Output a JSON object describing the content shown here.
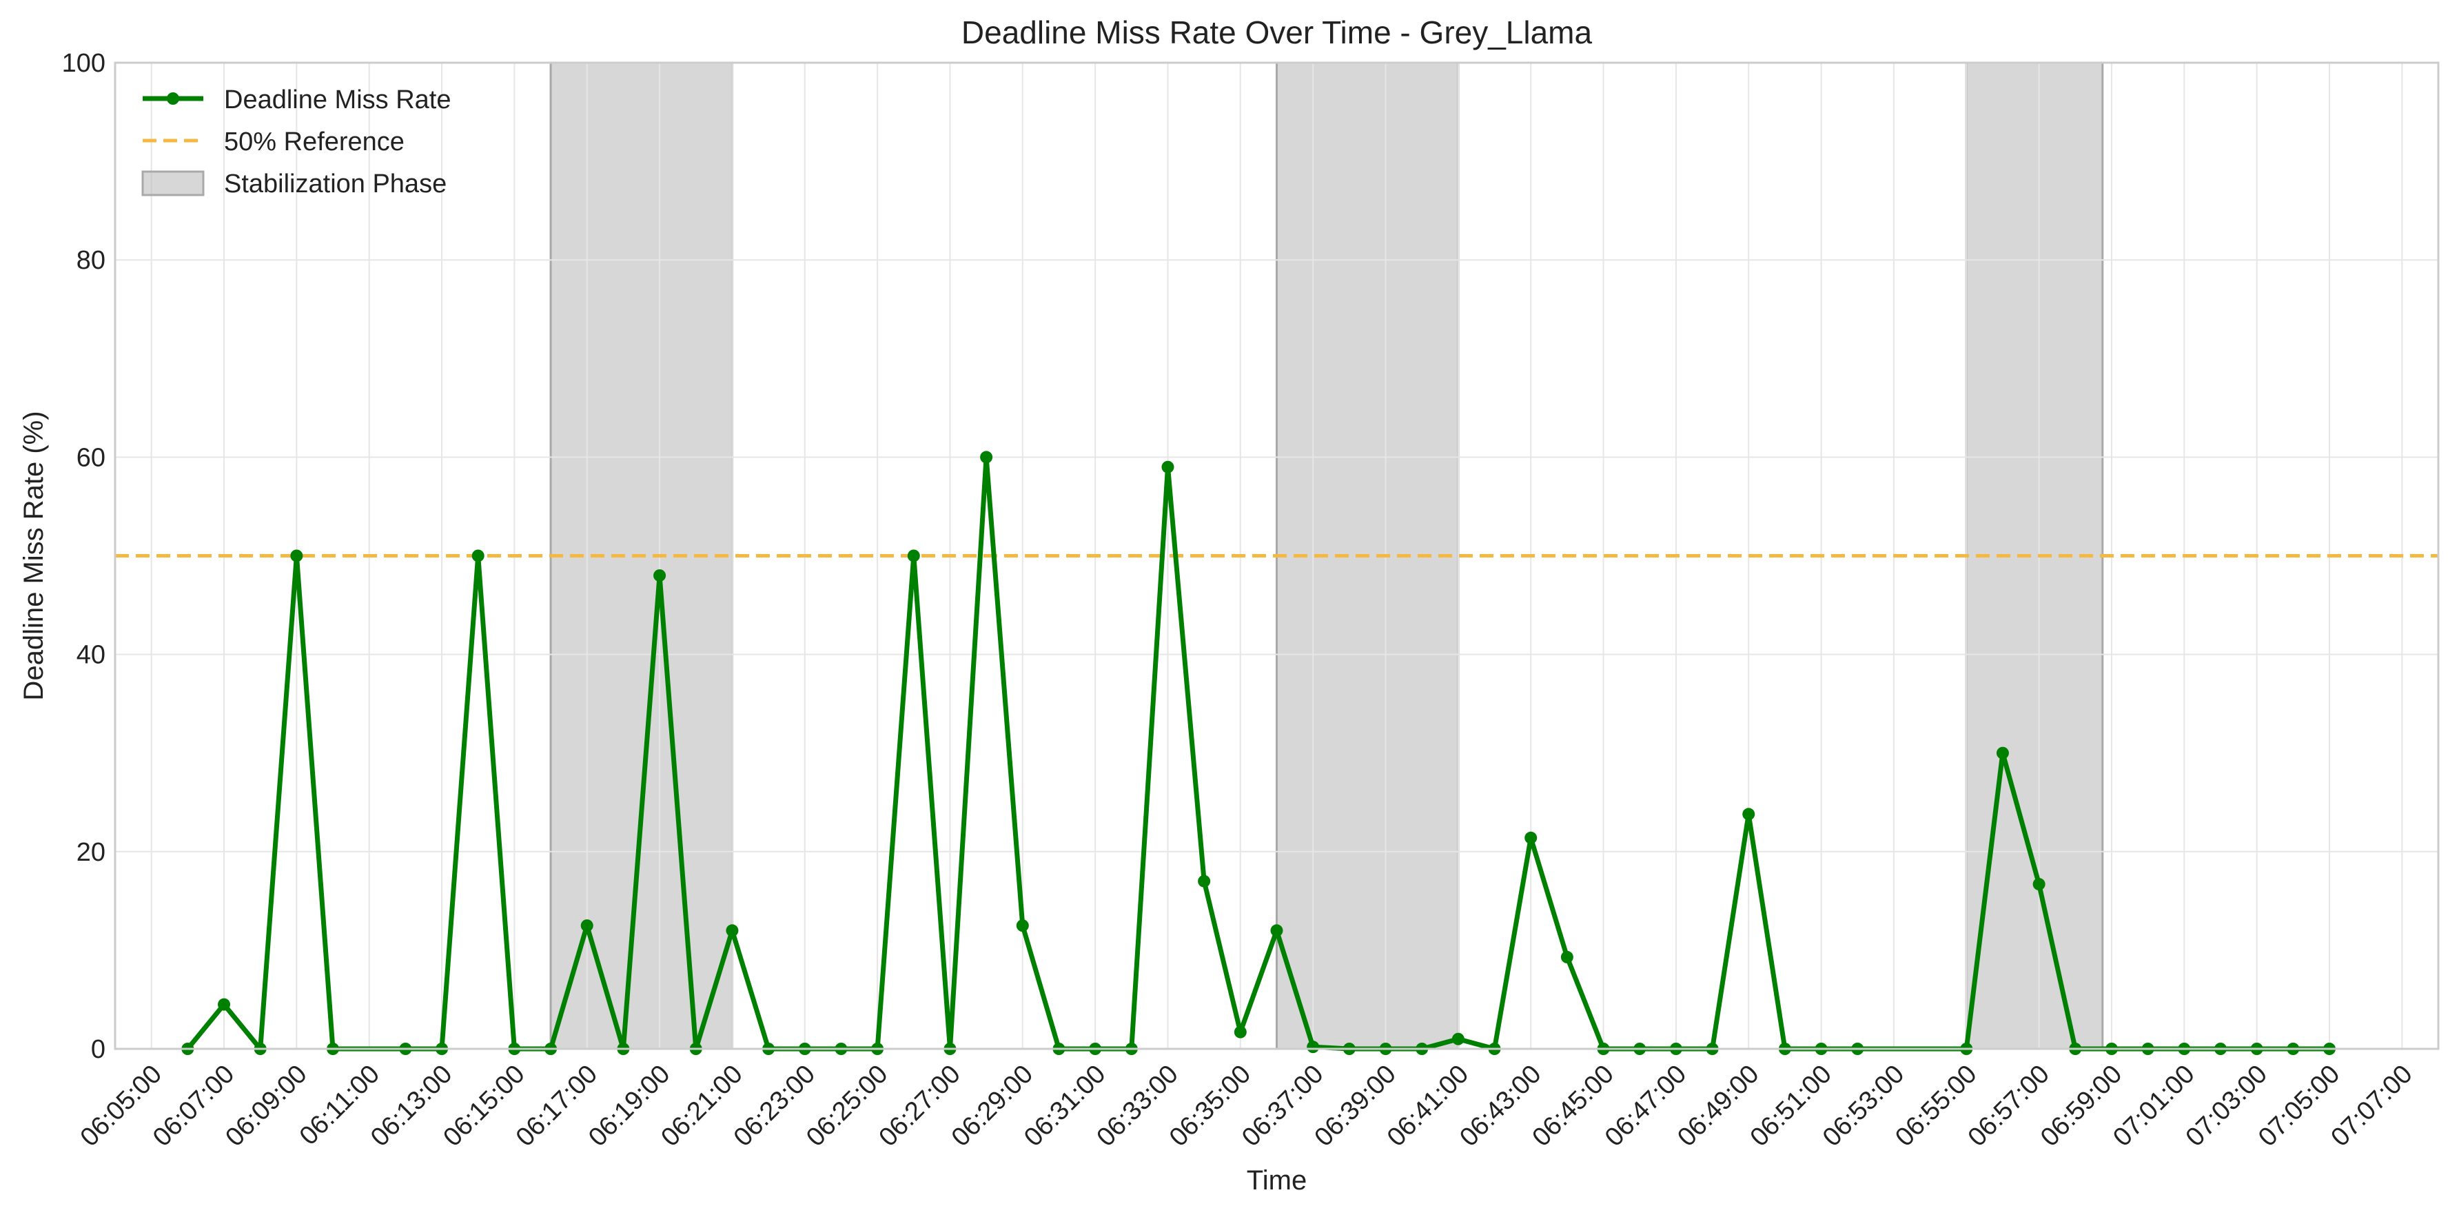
{
  "chart_data": {
    "type": "line",
    "title": "Deadline Miss Rate Over Time - Grey_Llama",
    "xlabel": "Time",
    "ylabel": "Deadline Miss Rate (%)",
    "ylim": [
      0,
      100
    ],
    "yticks": [
      0,
      20,
      40,
      60,
      80,
      100
    ],
    "xlim_minutes": [
      364,
      428
    ],
    "xticks": [
      "06:05:00",
      "06:07:00",
      "06:09:00",
      "06:11:00",
      "06:13:00",
      "06:15:00",
      "06:17:00",
      "06:19:00",
      "06:21:00",
      "06:23:00",
      "06:25:00",
      "06:27:00",
      "06:29:00",
      "06:31:00",
      "06:33:00",
      "06:35:00",
      "06:37:00",
      "06:39:00",
      "06:41:00",
      "06:43:00",
      "06:45:00",
      "06:47:00",
      "06:49:00",
      "06:51:00",
      "06:53:00",
      "06:55:00",
      "06:57:00",
      "06:59:00",
      "07:01:00",
      "07:03:00",
      "07:05:00",
      "07:07:00"
    ],
    "grid": true,
    "legend_position": "top-left",
    "series": [
      {
        "name": "Deadline Miss Rate",
        "color": "#008000",
        "x": [
          "06:06:00",
          "06:07:00",
          "06:08:00",
          "06:09:00",
          "06:10:00",
          "06:12:00",
          "06:13:00",
          "06:14:00",
          "06:15:00",
          "06:16:00",
          "06:17:00",
          "06:18:00",
          "06:19:00",
          "06:20:00",
          "06:21:00",
          "06:22:00",
          "06:23:00",
          "06:24:00",
          "06:25:00",
          "06:26:00",
          "06:27:00",
          "06:28:00",
          "06:29:00",
          "06:30:00",
          "06:31:00",
          "06:32:00",
          "06:33:00",
          "06:34:00",
          "06:35:00",
          "06:36:00",
          "06:37:00",
          "06:38:00",
          "06:39:00",
          "06:40:00",
          "06:41:00",
          "06:42:00",
          "06:43:00",
          "06:44:00",
          "06:45:00",
          "06:46:00",
          "06:47:00",
          "06:48:00",
          "06:49:00",
          "06:50:00",
          "06:51:00",
          "06:52:00",
          "06:55:00",
          "06:56:00",
          "06:57:00",
          "06:58:00",
          "06:59:00",
          "07:00:00",
          "07:01:00",
          "07:02:00",
          "07:03:00",
          "07:04:00",
          "07:05:00"
        ],
        "values": [
          0,
          4.5,
          0,
          50,
          0,
          0,
          0,
          50,
          0,
          0,
          12.5,
          0,
          48,
          0,
          12,
          0,
          0,
          0,
          0,
          50,
          0,
          60,
          12.5,
          0,
          0,
          0,
          59,
          17,
          1.7,
          12,
          0.2,
          0,
          0,
          0,
          1,
          0,
          21.4,
          9.3,
          0,
          0,
          0,
          0,
          23.8,
          0,
          0,
          0,
          0,
          30,
          16.7,
          0,
          0,
          0,
          0,
          0,
          0,
          0,
          0
        ]
      }
    ],
    "reference_line": {
      "name": "50% Reference",
      "y": 50,
      "color": "#F5B942"
    },
    "shaded_regions": {
      "name": "Stabilization Phase",
      "color": "#BDBDBD",
      "ranges": [
        [
          "06:16:00",
          "06:21:00"
        ],
        [
          "06:36:00",
          "06:41:00"
        ],
        [
          "06:55:00",
          "06:58:45"
        ]
      ]
    }
  }
}
